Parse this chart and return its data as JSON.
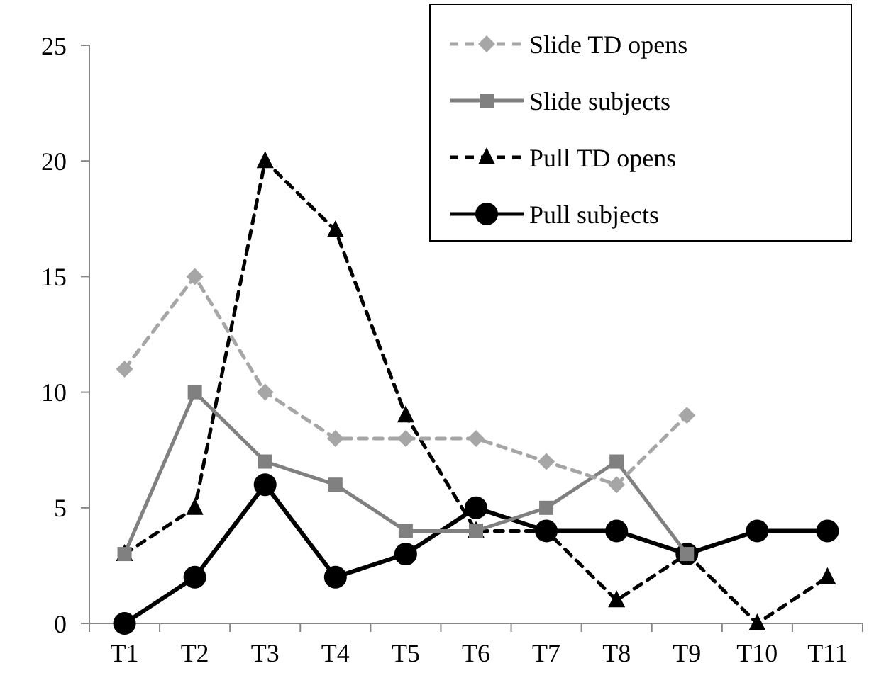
{
  "chart_data": {
    "type": "line",
    "categories": [
      "T1",
      "T2",
      "T3",
      "T4",
      "T5",
      "T6",
      "T7",
      "T8",
      "T9",
      "T10",
      "T11"
    ],
    "series": [
      {
        "name": "Slide TD opens",
        "color": "#a6a6a6",
        "marker": "diamond",
        "line_style": "dashed",
        "values": [
          11,
          15,
          10,
          8,
          8,
          8,
          7,
          6,
          9,
          null,
          null
        ]
      },
      {
        "name": "Slide subjects",
        "color": "#808080",
        "marker": "square",
        "line_style": "solid",
        "values": [
          3,
          10,
          7,
          6,
          4,
          4,
          5,
          7,
          3,
          null,
          null
        ]
      },
      {
        "name": "Pull TD opens",
        "color": "#000000",
        "marker": "triangle",
        "line_style": "dashed",
        "values": [
          3,
          5,
          20,
          17,
          9,
          4,
          4,
          1,
          3,
          0,
          2
        ]
      },
      {
        "name": "Pull subjects",
        "color": "#000000",
        "marker": "circle",
        "line_style": "solid",
        "values": [
          0,
          2,
          6,
          2,
          3,
          5,
          4,
          4,
          3,
          4,
          4
        ]
      }
    ],
    "ylim": [
      0,
      25
    ],
    "yticks": [
      0,
      5,
      10,
      15,
      20,
      25
    ],
    "grid": false,
    "legend": "top right"
  }
}
